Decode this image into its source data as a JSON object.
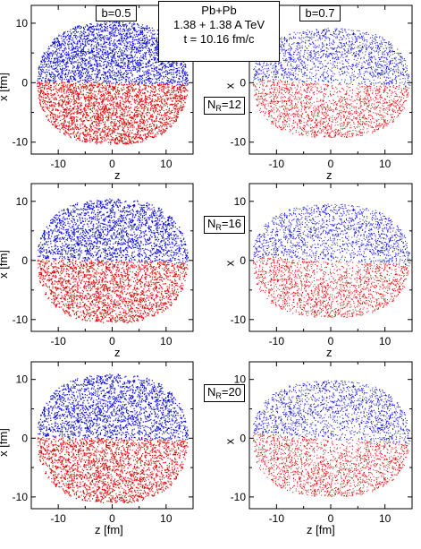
{
  "header": {
    "system": "Pb+Pb",
    "energy": "1.38 + 1.38 A TeV",
    "time": "t = 10.16 fm/c"
  },
  "columns": [
    {
      "label": "b=0.5"
    },
    {
      "label": "b=0.7"
    }
  ],
  "rows": [
    {
      "nr_main": "N",
      "nr_sub": "R",
      "nr_value": "=12"
    },
    {
      "nr_main": "N",
      "nr_sub": "R",
      "nr_value": "=16"
    },
    {
      "nr_main": "N",
      "nr_sub": "R",
      "nr_value": "=20"
    }
  ],
  "axis_labels": {
    "z": "z",
    "z_fm": "z [fm]",
    "x": "x",
    "x_fm": "x [fm]"
  },
  "colors": {
    "upper": "#1010e0",
    "lower": "#e00b0b",
    "axis": "#000000"
  },
  "chart_data": {
    "type": "scatter",
    "layout": "3 rows x 2 columns of panels",
    "series": [
      {
        "color": "blue",
        "region": "upper half (x > 0)"
      },
      {
        "color": "red",
        "region": "lower half (x < 0)"
      }
    ],
    "xlim": [
      -15,
      15
    ],
    "ylim": [
      -12,
      13
    ],
    "xticks": [
      -10,
      0,
      10
    ],
    "yticks": [
      -10,
      0,
      10
    ],
    "panels": [
      {
        "row": 0,
        "col": 0,
        "half_width": 14.0,
        "half_height": 10.3,
        "tilt": -0.02,
        "density": "dense"
      },
      {
        "row": 0,
        "col": 1,
        "half_width": 14.6,
        "half_height": 9.2,
        "tilt": -0.04,
        "density": "sparse"
      },
      {
        "row": 1,
        "col": 0,
        "half_width": 14.0,
        "half_height": 10.5,
        "tilt": -0.02,
        "density": "dense"
      },
      {
        "row": 1,
        "col": 1,
        "half_width": 14.6,
        "half_height": 9.6,
        "tilt": -0.05,
        "density": "sparse"
      },
      {
        "row": 2,
        "col": 0,
        "half_width": 14.0,
        "half_height": 11.0,
        "tilt": -0.02,
        "density": "dense"
      },
      {
        "row": 2,
        "col": 1,
        "half_width": 14.6,
        "half_height": 9.9,
        "tilt": -0.06,
        "density": "sparse"
      }
    ]
  }
}
